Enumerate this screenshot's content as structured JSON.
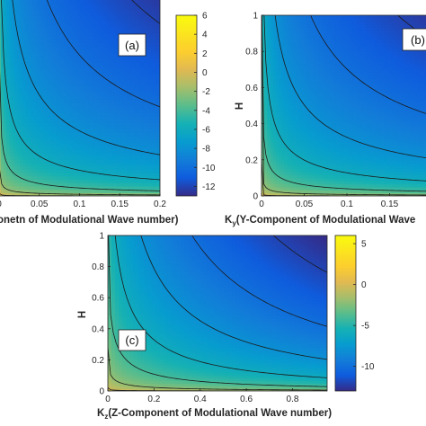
{
  "chart_data": [
    {
      "type": "heatmap",
      "panel_label": "(a)",
      "xlabel": "onetn of Modulational Wave number)",
      "xticks": [
        "0",
        "0.05",
        "0.1",
        "0.15",
        "0.2"
      ],
      "xlim": [
        -0.0045,
        0.2
      ],
      "ylim": [
        0,
        1
      ],
      "field": {
        "max": 2.8,
        "min": -12.5,
        "hpow": 0.22,
        "kexp": 0.2,
        "kwt": 0.74
      },
      "contour_levels": [
        -12,
        -10,
        -8,
        -6,
        -4,
        -2,
        0
      ],
      "colorbar": {
        "min": -13,
        "max": 6,
        "ticks": [
          "6",
          "4",
          "2",
          "0",
          "-2",
          "-4",
          "-6",
          "-8",
          "-10",
          "-12"
        ]
      }
    },
    {
      "type": "heatmap",
      "panel_label": "(b)",
      "xlabel": "K",
      "xlabel_sub": "y",
      "xlabel_rest": "(Y-Component of Modulational Wave",
      "ylabel": "H",
      "xticks": [
        "0",
        "0.05",
        "0.1",
        "0.15"
      ],
      "yticks": [
        "0",
        "0.2",
        "0.4",
        "0.6",
        "0.8",
        "1"
      ],
      "xlim": [
        0,
        0.2
      ],
      "ylim": [
        0,
        1
      ],
      "field": {
        "max": 2.8,
        "min": -12.5,
        "hpow": 0.22,
        "kexp": 0.2,
        "kwt": 0.74
      },
      "contour_levels": [
        -12,
        -10,
        -8,
        -6,
        -4,
        -2,
        0
      ]
    },
    {
      "type": "heatmap",
      "panel_label": "(c)",
      "xlabel": "K",
      "xlabel_sub": "z",
      "xlabel_rest": "(Z-Component of Modulational Wave number)",
      "ylabel": "H",
      "xticks": [
        "0",
        "0.2",
        "0.4",
        "0.6",
        "0.8"
      ],
      "yticks": [
        "0",
        "0.2",
        "0.4",
        "0.6",
        "0.8",
        "1"
      ],
      "xlim": [
        0,
        0.95
      ],
      "ylim": [
        0,
        1
      ],
      "field": {
        "max": 2.2,
        "min": -13,
        "hpow": 0.25,
        "kexp": 0.4,
        "kwt": 0.62
      },
      "contour_levels": [
        -12,
        -10,
        -8,
        -6,
        -4,
        -2,
        0
      ],
      "colorbar": {
        "min": -13,
        "max": 6,
        "ticks": [
          "5",
          "0",
          "-5",
          "-10"
        ]
      }
    }
  ]
}
